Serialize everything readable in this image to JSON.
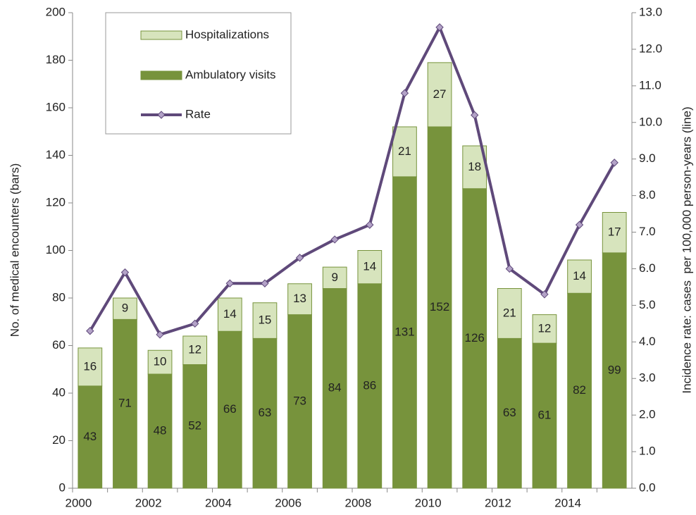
{
  "chart_data": {
    "type": "bar",
    "categories": [
      "2000",
      null,
      "2002",
      null,
      "2004",
      null,
      "2006",
      null,
      "2008",
      null,
      "2010",
      null,
      "2012",
      null,
      "2014",
      null
    ],
    "series": [
      {
        "name": "Ambulatory visits",
        "color": "#77933c",
        "values": [
          43,
          71,
          48,
          52,
          66,
          63,
          73,
          84,
          86,
          131,
          152,
          126,
          63,
          61,
          82,
          99
        ]
      },
      {
        "name": "Hospitalizations",
        "color": "#d7e4bd",
        "values": [
          16,
          9,
          10,
          12,
          14,
          15,
          13,
          9,
          14,
          21,
          27,
          18,
          21,
          12,
          14,
          17
        ]
      },
      {
        "name": "Rate",
        "type": "line",
        "axis": "y2",
        "color": "#5f497a",
        "values": [
          4.3,
          5.9,
          4.2,
          4.5,
          5.6,
          5.6,
          6.3,
          6.8,
          7.2,
          10.8,
          12.6,
          10.2,
          6.0,
          5.3,
          7.2,
          8.9
        ]
      }
    ],
    "y_label": "No. of medical encounters (bars)",
    "y2_label": "Incidence rate: cases  per 100,000 person-years (line)",
    "ylim": [
      0,
      200
    ],
    "yticks": [
      0,
      20,
      40,
      60,
      80,
      100,
      120,
      140,
      160,
      180,
      200
    ],
    "y2lim": [
      0,
      13
    ],
    "y2ticks": [
      {
        "value": 0,
        "label": "0.0"
      },
      {
        "value": 1,
        "label": "1.0"
      },
      {
        "value": 2,
        "label": "2.0"
      },
      {
        "value": 3,
        "label": "3.0"
      },
      {
        "value": 4,
        "label": "4.0"
      },
      {
        "value": 5,
        "label": "5.0"
      },
      {
        "value": 6,
        "label": "6.0"
      },
      {
        "value": 7,
        "label": "7.0"
      },
      {
        "value": 8,
        "label": "8.0"
      },
      {
        "value": 9,
        "label": "9.0"
      },
      {
        "value": 10,
        "label": "10.0"
      },
      {
        "value": 11,
        "label": "11.0"
      },
      {
        "value": 12,
        "label": "12.0"
      },
      {
        "value": 13,
        "label": "13.0"
      }
    ],
    "grid": false
  }
}
